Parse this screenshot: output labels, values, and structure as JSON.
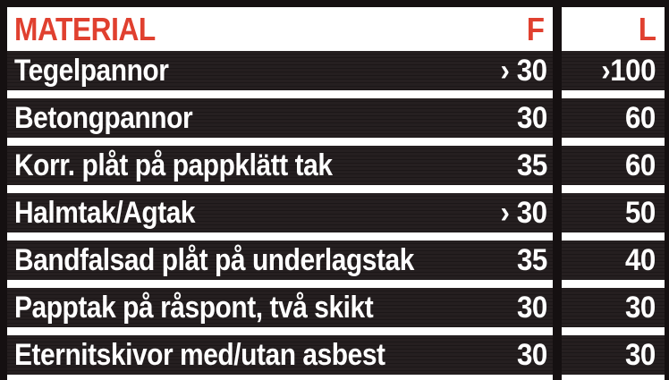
{
  "chart_data": {
    "type": "table",
    "columns": [
      "MATERIAL",
      "F",
      "L"
    ],
    "rows": [
      [
        "Tegelpannor",
        "› 30",
        "›100"
      ],
      [
        "Betongpannor",
        "30",
        "60"
      ],
      [
        "Korr. plåt på pappklätt tak",
        "35",
        "60"
      ],
      [
        "Halmtak/Agtak",
        "› 30",
        "50"
      ],
      [
        "Bandfalsad plåt på underlagstak",
        "35",
        "40"
      ],
      [
        "Papptak på råspont, två skikt",
        "30",
        "30"
      ],
      [
        "Eternitskivor med/utan asbest",
        "30",
        "30"
      ]
    ],
    "layout": "two column groups: MATERIAL+F left, L right; white separator bars between dark rows; white header band"
  },
  "colors": {
    "accent_red": "#e0402f",
    "header_bg": "#ffffff",
    "row_bg": "#211c1d",
    "frame_black": "#151011",
    "separator_white": "#ffffff",
    "row_text": "#ffffff"
  }
}
